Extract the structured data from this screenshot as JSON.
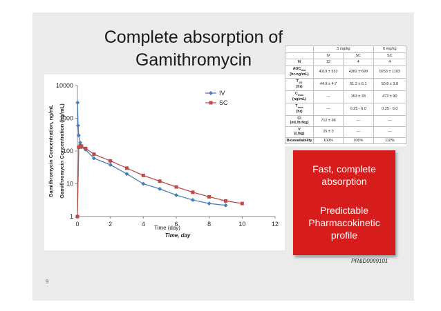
{
  "slide": {
    "title_line1": "Complete absorption of",
    "title_line2": "Gamithromycin",
    "page_number": "9",
    "reference": "PR&D0099101",
    "callout": {
      "line1": "Fast, complete",
      "line2": "absorption",
      "line3": "Predictable",
      "line4": "Pharmacokinetic",
      "line5": "profile"
    },
    "colors": {
      "background": "#ebebeb",
      "callout": "#d71c1c",
      "iv": "#4a7ebb",
      "sc": "#be4b48"
    }
  },
  "pk_table": {
    "dose_headers": [
      "3 mg/kg",
      "6 mg/kg"
    ],
    "route_headers": [
      "IV",
      "SC",
      "SC"
    ],
    "rows": [
      {
        "label": "N",
        "values": [
          "12",
          "4",
          "4"
        ]
      },
      {
        "label": "AUC",
        "label_sub": "last",
        "label2": "(hr-ng/mL)",
        "values": [
          "4119 ± 533",
          "4382 ± 699",
          "9253 ± 1103"
        ]
      },
      {
        "label": "T",
        "label_sub": "1/2",
        "label2": "(hr)",
        "values": [
          "44.9 ± 4.7",
          "51.2 ± 6.1",
          "50.8 ± 3.8"
        ]
      },
      {
        "label": "C",
        "label_sub": "max",
        "label2": "(ng/mL)",
        "values": [
          "---",
          "153 ± 33",
          "472 ± 90"
        ]
      },
      {
        "label": "T",
        "label_sub": "max",
        "label2": "(hr)",
        "values": [
          "---",
          "0.25 - 6.0",
          "0.25 - 6.0"
        ]
      },
      {
        "label": "Cl",
        "label2": "(mL/hr/kg)",
        "values": [
          "712 ± 96",
          "---",
          "---"
        ]
      },
      {
        "label": "V",
        "label2": "(L/kg)",
        "values": [
          "25 ± 3",
          "---",
          "---"
        ]
      },
      {
        "label": "Bioavailability",
        "values": [
          "100%",
          "106%",
          "112%"
        ]
      }
    ]
  },
  "chart_data": {
    "type": "line",
    "xlabel_inner": "Time (day)",
    "xlabel_outer": "Time, day",
    "ylabel_inner": "Gamithromycin Concentration (ng/mL)",
    "ylabel_outer": "Gamithromycin Concentration, ng/mL",
    "y_scale": "log",
    "xlim": [
      0,
      12
    ],
    "ylim": [
      1,
      10000
    ],
    "x_ticks": [
      "0",
      "2",
      "4",
      "6",
      "8",
      "10",
      "12"
    ],
    "y_ticks": [
      "1",
      "10",
      "100",
      "1000",
      "10000"
    ],
    "y_ticks_shown": [
      "1",
      "10",
      "100",
      "1000",
      "10000"
    ],
    "legend_position": "top-right",
    "series": [
      {
        "name": "IV",
        "color": "#4a7ebb",
        "marker": "diamond",
        "x": [
          0.01,
          0.04,
          0.08,
          0.17,
          0.25,
          0.5,
          1,
          2,
          3,
          4,
          5,
          6,
          7,
          8,
          9
        ],
        "y": [
          3000,
          600,
          300,
          180,
          130,
          110,
          60,
          38,
          20,
          10,
          7,
          4.5,
          3.2,
          2.5,
          2.2
        ]
      },
      {
        "name": "SC",
        "color": "#be4b48",
        "marker": "square",
        "x": [
          0,
          0.08,
          0.17,
          0.25,
          0.5,
          1,
          2,
          3,
          4,
          5,
          6,
          7,
          8,
          9,
          10
        ],
        "y": [
          1,
          130,
          145,
          140,
          120,
          80,
          50,
          30,
          18,
          12,
          8,
          5.5,
          4,
          3,
          2.5
        ]
      }
    ]
  }
}
